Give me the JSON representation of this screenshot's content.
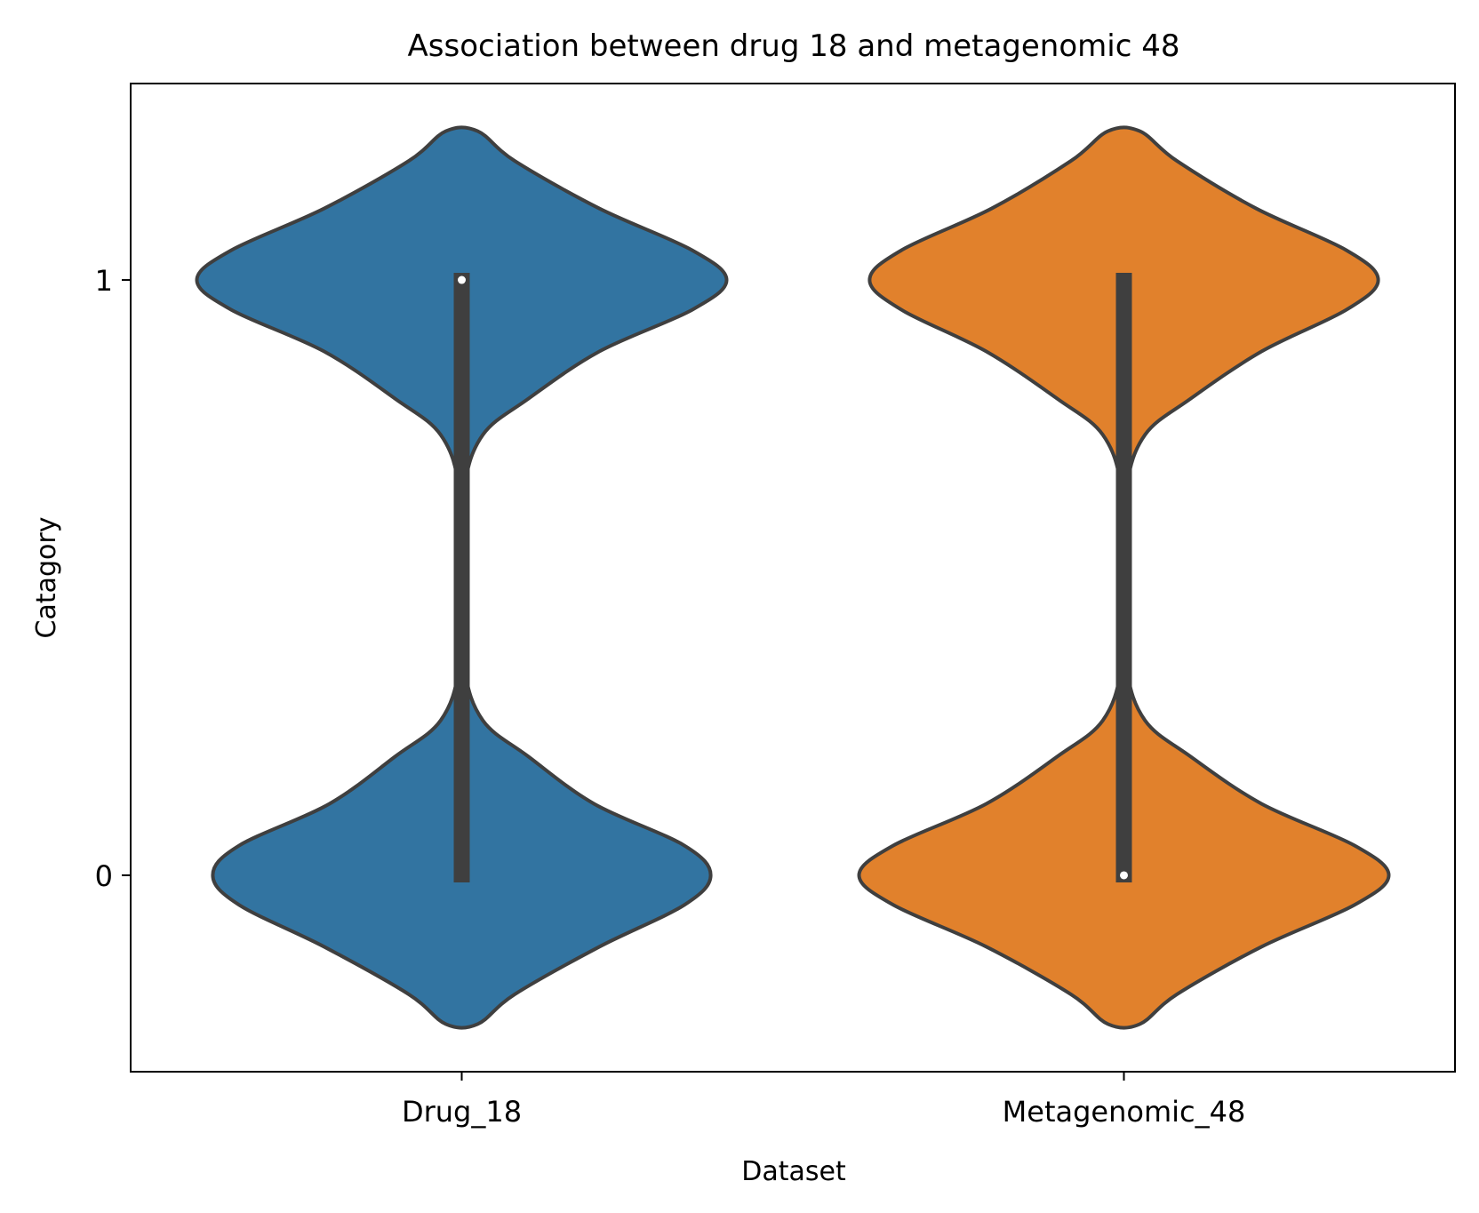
{
  "chart_data": {
    "type": "violin",
    "title": "Association between drug 18 and metagenomic 48",
    "xlabel": "Dataset",
    "ylabel": "Catagory",
    "categories": [
      "Drug_18",
      "Metagenomic_48"
    ],
    "yticks": [
      "0",
      "1"
    ],
    "ylim": [
      -0.33,
      1.33
    ],
    "grid": false,
    "legend": "none",
    "series": [
      {
        "category": "Drug_18",
        "color": "#3274a1",
        "data_range": [
          0,
          1
        ],
        "median": 1,
        "quartiles": [
          0,
          1
        ],
        "support": [
          -0.25,
          1.25
        ],
        "density_profile": [
          {
            "y": -0.25,
            "w": 0.06
          },
          {
            "y": -0.2,
            "w": 0.2
          },
          {
            "y": -0.12,
            "w": 0.52
          },
          {
            "y": -0.05,
            "w": 0.84
          },
          {
            "y": 0.0,
            "w": 0.94
          },
          {
            "y": 0.05,
            "w": 0.84
          },
          {
            "y": 0.12,
            "w": 0.5
          },
          {
            "y": 0.2,
            "w": 0.25
          },
          {
            "y": 0.26,
            "w": 0.08
          },
          {
            "y": 0.35,
            "w": 0.01
          },
          {
            "y": 0.5,
            "w": 0.005
          },
          {
            "y": 0.65,
            "w": 0.01
          },
          {
            "y": 0.74,
            "w": 0.08
          },
          {
            "y": 0.8,
            "w": 0.25
          },
          {
            "y": 0.88,
            "w": 0.52
          },
          {
            "y": 0.95,
            "w": 0.87
          },
          {
            "y": 1.0,
            "w": 1.0
          },
          {
            "y": 1.05,
            "w": 0.87
          },
          {
            "y": 1.12,
            "w": 0.52
          },
          {
            "y": 1.2,
            "w": 0.2
          },
          {
            "y": 1.25,
            "w": 0.06
          }
        ]
      },
      {
        "category": "Metagenomic_48",
        "color": "#e1812c",
        "data_range": [
          0,
          1
        ],
        "median": 0,
        "quartiles": [
          0,
          1
        ],
        "support": [
          -0.25,
          1.25
        ],
        "density_profile": [
          {
            "y": -0.25,
            "w": 0.06
          },
          {
            "y": -0.2,
            "w": 0.2
          },
          {
            "y": -0.12,
            "w": 0.52
          },
          {
            "y": -0.05,
            "w": 0.87
          },
          {
            "y": 0.0,
            "w": 1.0
          },
          {
            "y": 0.05,
            "w": 0.87
          },
          {
            "y": 0.12,
            "w": 0.52
          },
          {
            "y": 0.2,
            "w": 0.25
          },
          {
            "y": 0.26,
            "w": 0.08
          },
          {
            "y": 0.35,
            "w": 0.01
          },
          {
            "y": 0.5,
            "w": 0.005
          },
          {
            "y": 0.65,
            "w": 0.01
          },
          {
            "y": 0.74,
            "w": 0.08
          },
          {
            "y": 0.8,
            "w": 0.25
          },
          {
            "y": 0.88,
            "w": 0.52
          },
          {
            "y": 0.95,
            "w": 0.84
          },
          {
            "y": 1.0,
            "w": 0.96
          },
          {
            "y": 1.05,
            "w": 0.84
          },
          {
            "y": 1.12,
            "w": 0.5
          },
          {
            "y": 1.2,
            "w": 0.2
          },
          {
            "y": 1.25,
            "w": 0.06
          }
        ]
      }
    ]
  }
}
